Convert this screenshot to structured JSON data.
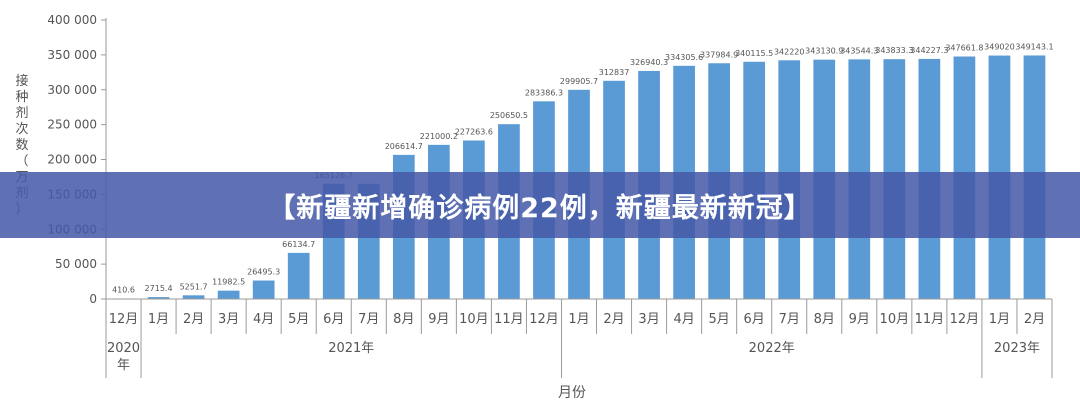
{
  "banner": {
    "title": "【新疆新增确诊病例22例，新疆最新新冠】"
  },
  "chart_data": {
    "type": "bar",
    "title": "",
    "xlabel": "月份",
    "ylabel": "接种剂次数（万剂）",
    "ylim": [
      0,
      400000
    ],
    "yticks": [
      0,
      50000,
      100000,
      150000,
      200000,
      250000,
      300000,
      350000,
      400000
    ],
    "ytick_labels": [
      "0",
      "50 000",
      "100 000",
      "150 000",
      "200 000",
      "250 000",
      "300 000",
      "350 000",
      "400 000"
    ],
    "grid": false,
    "bar_color": "#5b9bd5",
    "categories": [
      "12月",
      "1月",
      "2月",
      "3月",
      "4月",
      "5月",
      "6月",
      "7月",
      "8月",
      "9月",
      "10月",
      "11月",
      "12月",
      "1月",
      "2月",
      "3月",
      "4月",
      "5月",
      "6月",
      "7月",
      "8月",
      "9月",
      "10月",
      "11月",
      "12月",
      "1月",
      "2月"
    ],
    "values": [
      410.6,
      2715.4,
      5251.7,
      11982.5,
      26495.3,
      66134.7,
      165126.7,
      165126.7,
      206614.7,
      221000.2,
      227263.6,
      250650.5,
      283386.3,
      299905.7,
      312837,
      326940.3,
      334305.6,
      337984.9,
      340115.5,
      342220,
      343130.9,
      343544.3,
      343833.3,
      344227.3,
      347661.8,
      349020,
      349143.1
    ],
    "value_labels": [
      "410.6",
      "2715.4",
      "5251.7",
      "11982.5",
      "26495.3",
      "66134.7",
      "165126.7",
      "",
      "206614.7",
      "221000.2",
      "227263.6",
      "250650.5",
      "283386.3",
      "299905.7",
      "312837",
      "326940.3",
      "334305.6",
      "337984.9",
      "340115.5",
      "342220",
      "343130.9",
      "343544.3",
      "343833.3",
      "344227.3",
      "347661.8",
      "349020",
      "349143.1"
    ],
    "years": [
      {
        "label": "2020年",
        "start": 0,
        "end": 0
      },
      {
        "label": "2021年",
        "start": 1,
        "end": 12
      },
      {
        "label": "2022年",
        "start": 13,
        "end": 24
      },
      {
        "label": "2023年",
        "start": 25,
        "end": 26
      }
    ]
  }
}
